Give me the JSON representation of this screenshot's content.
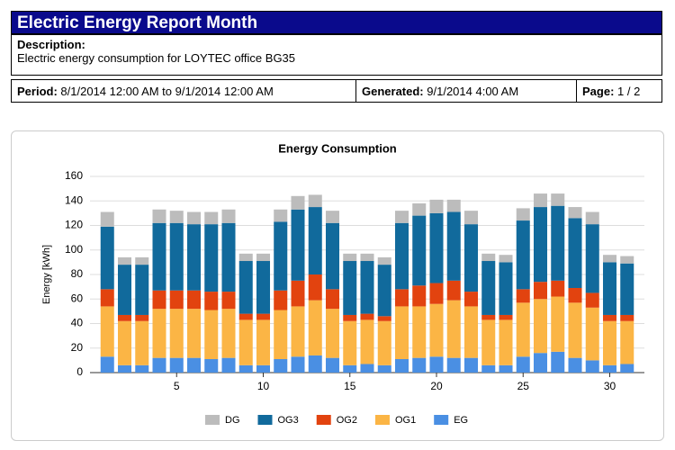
{
  "header": {
    "title": "Electric Energy Report Month",
    "description_label": "Description:",
    "description": "Electric energy consumption for LOYTEC office BG35",
    "period_label": "Period:",
    "period": "8/1/2014 12:00 AM to 9/1/2014 12:00 AM",
    "generated_label": "Generated:",
    "generated": "9/1/2014 4:00 AM",
    "page_label": "Page:",
    "page": "1 / 2"
  },
  "chart_data": {
    "type": "stacked_bar",
    "title": "Energy Consumption",
    "y_label": "Energy [kWh]",
    "x": [
      1,
      2,
      3,
      4,
      5,
      6,
      7,
      8,
      9,
      10,
      11,
      12,
      13,
      14,
      15,
      16,
      17,
      18,
      19,
      20,
      21,
      22,
      23,
      24,
      25,
      26,
      27,
      28,
      29,
      30,
      31
    ],
    "xlim": [
      0,
      32
    ],
    "xticks": [
      5,
      10,
      15,
      20,
      25,
      30
    ],
    "ylim": [
      0,
      160
    ],
    "yticks": [
      0,
      20,
      40,
      60,
      80,
      100,
      120,
      140,
      160
    ],
    "grid": true,
    "legend": "bottom",
    "series": [
      {
        "name": "EG",
        "color": "#4a8fe3",
        "values": [
          13,
          6,
          6,
          12,
          12,
          12,
          11,
          12,
          6,
          6,
          11,
          13,
          14,
          12,
          6,
          7,
          6,
          11,
          12,
          13,
          12,
          12,
          6,
          6,
          13,
          16,
          17,
          12,
          10,
          6,
          7
        ]
      },
      {
        "name": "OG1",
        "color": "#fbb545",
        "values": [
          41,
          36,
          36,
          40,
          40,
          40,
          40,
          40,
          37,
          37,
          40,
          41,
          45,
          40,
          36,
          36,
          36,
          43,
          42,
          43,
          47,
          42,
          37,
          37,
          44,
          44,
          45,
          45,
          43,
          36,
          35
        ]
      },
      {
        "name": "OG2",
        "color": "#e2430f",
        "values": [
          14,
          5,
          5,
          15,
          15,
          15,
          15,
          14,
          5,
          5,
          16,
          21,
          21,
          16,
          5,
          5,
          4,
          14,
          17,
          17,
          16,
          12,
          4,
          4,
          11,
          14,
          13,
          12,
          12,
          5,
          5
        ]
      },
      {
        "name": "OG3",
        "color": "#116a9c",
        "values": [
          51,
          41,
          41,
          55,
          55,
          54,
          55,
          56,
          43,
          43,
          56,
          58,
          55,
          54,
          44,
          43,
          42,
          54,
          57,
          57,
          56,
          55,
          44,
          43,
          56,
          61,
          61,
          57,
          56,
          43,
          42
        ]
      },
      {
        "name": "DG",
        "color": "#bcbcbc",
        "values": [
          12,
          6,
          6,
          11,
          10,
          10,
          10,
          11,
          6,
          6,
          10,
          11,
          10,
          10,
          6,
          6,
          6,
          10,
          10,
          11,
          10,
          11,
          6,
          6,
          10,
          11,
          10,
          9,
          10,
          6,
          6
        ]
      }
    ]
  }
}
